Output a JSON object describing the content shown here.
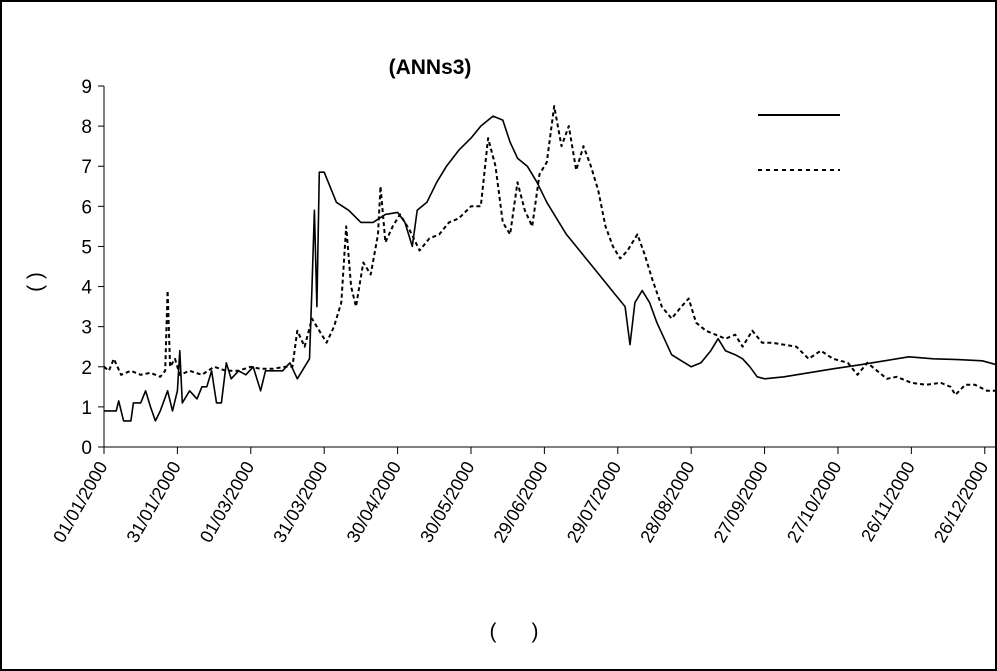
{
  "chart_data": {
    "type": "line",
    "title": "(ANNs3)",
    "xlabel": "(      )",
    "ylabel": "(      )",
    "ylim": [
      0,
      9
    ],
    "yticks": [
      "0",
      "1",
      "2",
      "3",
      "4",
      "5",
      "6",
      "7",
      "8",
      "9"
    ],
    "xlim": [
      "2000-01-01",
      "2000-12-31"
    ],
    "xticks": [
      "01/01/2000",
      "31/01/2000",
      "01/03/2000",
      "31/03/2000",
      "30/04/2000",
      "30/05/2000",
      "29/06/2000",
      "29/07/2000",
      "28/08/2000",
      "27/09/2000",
      "27/10/2000",
      "26/11/2000",
      "26/12/2000"
    ],
    "legend_position": "top-right",
    "grid": false,
    "series": [
      {
        "style": "solid",
        "color": "#000000",
        "points": [
          [
            "2000-01-01",
            0.9
          ],
          [
            "2000-01-06",
            0.9
          ],
          [
            "2000-01-07",
            1.15
          ],
          [
            "2000-01-09",
            0.65
          ],
          [
            "2000-01-12",
            0.65
          ],
          [
            "2000-01-13",
            1.1
          ],
          [
            "2000-01-16",
            1.1
          ],
          [
            "2000-01-18",
            1.4
          ],
          [
            "2000-01-20",
            1.0
          ],
          [
            "2000-01-22",
            0.65
          ],
          [
            "2000-01-24",
            0.9
          ],
          [
            "2000-01-27",
            1.4
          ],
          [
            "2000-01-29",
            0.9
          ],
          [
            "2000-01-31",
            1.4
          ],
          [
            "2000-02-01",
            2.4
          ],
          [
            "2000-02-02",
            1.1
          ],
          [
            "2000-02-05",
            1.4
          ],
          [
            "2000-02-08",
            1.2
          ],
          [
            "2000-02-10",
            1.5
          ],
          [
            "2000-02-12",
            1.5
          ],
          [
            "2000-02-14",
            1.9
          ],
          [
            "2000-02-16",
            1.1
          ],
          [
            "2000-02-18",
            1.1
          ],
          [
            "2000-02-20",
            2.1
          ],
          [
            "2000-02-22",
            1.7
          ],
          [
            "2000-02-25",
            1.9
          ],
          [
            "2000-02-28",
            1.8
          ],
          [
            "2000-03-02",
            2.0
          ],
          [
            "2000-03-05",
            1.4
          ],
          [
            "2000-03-07",
            1.9
          ],
          [
            "2000-03-14",
            1.9
          ],
          [
            "2000-03-17",
            2.1
          ],
          [
            "2000-03-20",
            1.7
          ],
          [
            "2000-03-23",
            2.0
          ],
          [
            "2000-03-25",
            2.2
          ],
          [
            "2000-03-26",
            4.0
          ],
          [
            "2000-03-27",
            5.9
          ],
          [
            "2000-03-28",
            3.5
          ],
          [
            "2000-03-29",
            6.85
          ],
          [
            "2000-03-31",
            6.85
          ],
          [
            "2000-04-05",
            6.1
          ],
          [
            "2000-04-10",
            5.9
          ],
          [
            "2000-04-15",
            5.6
          ],
          [
            "2000-04-20",
            5.6
          ],
          [
            "2000-04-25",
            5.8
          ],
          [
            "2000-04-30",
            5.85
          ],
          [
            "2000-05-03",
            5.6
          ],
          [
            "2000-05-06",
            5.0
          ],
          [
            "2000-05-08",
            5.9
          ],
          [
            "2000-05-12",
            6.1
          ],
          [
            "2000-05-16",
            6.6
          ],
          [
            "2000-05-20",
            7.0
          ],
          [
            "2000-05-25",
            7.4
          ],
          [
            "2000-05-30",
            7.7
          ],
          [
            "2000-06-03",
            8.0
          ],
          [
            "2000-06-08",
            8.25
          ],
          [
            "2000-06-12",
            8.15
          ],
          [
            "2000-06-15",
            7.6
          ],
          [
            "2000-06-18",
            7.2
          ],
          [
            "2000-06-22",
            7.0
          ],
          [
            "2000-06-26",
            6.6
          ],
          [
            "2000-06-30",
            6.1
          ],
          [
            "2000-07-04",
            5.7
          ],
          [
            "2000-07-08",
            5.3
          ],
          [
            "2000-07-12",
            5.0
          ],
          [
            "2000-07-16",
            4.7
          ],
          [
            "2000-07-20",
            4.4
          ],
          [
            "2000-07-24",
            4.1
          ],
          [
            "2000-07-28",
            3.8
          ],
          [
            "2000-08-01",
            3.5
          ],
          [
            "2000-08-03",
            2.55
          ],
          [
            "2000-08-05",
            3.6
          ],
          [
            "2000-08-08",
            3.9
          ],
          [
            "2000-08-11",
            3.6
          ],
          [
            "2000-08-14",
            3.1
          ],
          [
            "2000-08-17",
            2.7
          ],
          [
            "2000-08-20",
            2.3
          ],
          [
            "2000-08-24",
            2.15
          ],
          [
            "2000-08-28",
            2.0
          ],
          [
            "2000-09-01",
            2.1
          ],
          [
            "2000-09-05",
            2.4
          ],
          [
            "2000-09-08",
            2.7
          ],
          [
            "2000-09-11",
            2.4
          ],
          [
            "2000-09-15",
            2.3
          ],
          [
            "2000-09-18",
            2.2
          ],
          [
            "2000-09-21",
            2.0
          ],
          [
            "2000-09-24",
            1.75
          ],
          [
            "2000-09-27",
            1.7
          ],
          [
            "2000-10-05",
            1.75
          ],
          [
            "2000-10-15",
            1.85
          ],
          [
            "2000-10-25",
            1.95
          ],
          [
            "2000-11-05",
            2.05
          ],
          [
            "2000-11-15",
            2.15
          ],
          [
            "2000-11-25",
            2.25
          ],
          [
            "2000-12-05",
            2.2
          ],
          [
            "2000-12-15",
            2.18
          ],
          [
            "2000-12-25",
            2.15
          ],
          [
            "2000-12-31",
            2.05
          ]
        ]
      },
      {
        "style": "dashed",
        "color": "#000000",
        "points": [
          [
            "2000-01-01",
            2.0
          ],
          [
            "2000-01-03",
            1.9
          ],
          [
            "2000-01-05",
            2.2
          ],
          [
            "2000-01-08",
            1.8
          ],
          [
            "2000-01-12",
            1.9
          ],
          [
            "2000-01-16",
            1.8
          ],
          [
            "2000-01-20",
            1.85
          ],
          [
            "2000-01-24",
            1.75
          ],
          [
            "2000-01-26",
            1.9
          ],
          [
            "2000-01-27",
            3.9
          ],
          [
            "2000-01-28",
            2.0
          ],
          [
            "2000-01-30",
            2.2
          ],
          [
            "2000-02-01",
            1.8
          ],
          [
            "2000-02-05",
            1.9
          ],
          [
            "2000-02-10",
            1.8
          ],
          [
            "2000-02-15",
            2.0
          ],
          [
            "2000-02-20",
            1.9
          ],
          [
            "2000-02-25",
            1.9
          ],
          [
            "2000-03-01",
            2.0
          ],
          [
            "2000-03-05",
            1.95
          ],
          [
            "2000-03-10",
            1.95
          ],
          [
            "2000-03-15",
            2.0
          ],
          [
            "2000-03-18",
            2.0
          ],
          [
            "2000-03-20",
            2.9
          ],
          [
            "2000-03-23",
            2.5
          ],
          [
            "2000-03-26",
            3.2
          ],
          [
            "2000-03-29",
            2.9
          ],
          [
            "2000-04-01",
            2.6
          ],
          [
            "2000-04-04",
            3.0
          ],
          [
            "2000-04-07",
            3.6
          ],
          [
            "2000-04-09",
            5.5
          ],
          [
            "2000-04-11",
            4.0
          ],
          [
            "2000-04-13",
            3.5
          ],
          [
            "2000-04-16",
            4.6
          ],
          [
            "2000-04-19",
            4.3
          ],
          [
            "2000-04-22",
            5.3
          ],
          [
            "2000-04-23",
            6.5
          ],
          [
            "2000-04-25",
            5.1
          ],
          [
            "2000-04-28",
            5.5
          ],
          [
            "2000-05-01",
            5.8
          ],
          [
            "2000-05-05",
            5.4
          ],
          [
            "2000-05-09",
            4.9
          ],
          [
            "2000-05-13",
            5.2
          ],
          [
            "2000-05-17",
            5.3
          ],
          [
            "2000-05-21",
            5.6
          ],
          [
            "2000-05-25",
            5.7
          ],
          [
            "2000-05-30",
            6.0
          ],
          [
            "2000-06-03",
            6.0
          ],
          [
            "2000-06-06",
            7.7
          ],
          [
            "2000-06-09",
            7.0
          ],
          [
            "2000-06-12",
            5.6
          ],
          [
            "2000-06-15",
            5.3
          ],
          [
            "2000-06-18",
            6.6
          ],
          [
            "2000-06-21",
            5.9
          ],
          [
            "2000-06-24",
            5.5
          ],
          [
            "2000-06-27",
            6.8
          ],
          [
            "2000-06-30",
            7.1
          ],
          [
            "2000-07-03",
            8.5
          ],
          [
            "2000-07-06",
            7.5
          ],
          [
            "2000-07-09",
            8.0
          ],
          [
            "2000-07-12",
            6.9
          ],
          [
            "2000-07-15",
            7.5
          ],
          [
            "2000-07-18",
            7.0
          ],
          [
            "2000-07-21",
            6.4
          ],
          [
            "2000-07-24",
            5.5
          ],
          [
            "2000-07-27",
            5.0
          ],
          [
            "2000-07-30",
            4.7
          ],
          [
            "2000-08-02",
            4.9
          ],
          [
            "2000-08-06",
            5.3
          ],
          [
            "2000-08-09",
            4.8
          ],
          [
            "2000-08-12",
            4.2
          ],
          [
            "2000-08-16",
            3.5
          ],
          [
            "2000-08-20",
            3.2
          ],
          [
            "2000-08-24",
            3.5
          ],
          [
            "2000-08-27",
            3.7
          ],
          [
            "2000-08-30",
            3.1
          ],
          [
            "2000-09-03",
            2.9
          ],
          [
            "2000-09-07",
            2.8
          ],
          [
            "2000-09-11",
            2.7
          ],
          [
            "2000-09-15",
            2.8
          ],
          [
            "2000-09-18",
            2.5
          ],
          [
            "2000-09-22",
            2.9
          ],
          [
            "2000-09-26",
            2.6
          ],
          [
            "2000-09-30",
            2.6
          ],
          [
            "2000-10-05",
            2.55
          ],
          [
            "2000-10-10",
            2.5
          ],
          [
            "2000-10-15",
            2.2
          ],
          [
            "2000-10-20",
            2.4
          ],
          [
            "2000-10-25",
            2.2
          ],
          [
            "2000-10-31",
            2.1
          ],
          [
            "2000-11-04",
            1.8
          ],
          [
            "2000-11-08",
            2.1
          ],
          [
            "2000-11-12",
            1.9
          ],
          [
            "2000-11-16",
            1.7
          ],
          [
            "2000-11-20",
            1.75
          ],
          [
            "2000-11-26",
            1.6
          ],
          [
            "2000-12-02",
            1.55
          ],
          [
            "2000-12-08",
            1.6
          ],
          [
            "2000-12-12",
            1.5
          ],
          [
            "2000-12-14",
            1.3
          ],
          [
            "2000-12-18",
            1.55
          ],
          [
            "2000-12-22",
            1.55
          ],
          [
            "2000-12-27",
            1.4
          ],
          [
            "2000-12-31",
            1.4
          ]
        ]
      }
    ]
  }
}
